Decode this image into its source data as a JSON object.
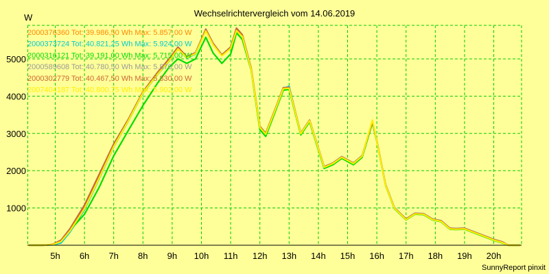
{
  "chart_data": {
    "type": "line",
    "title": "Wechselrichtervergleich vom 14.06.2019",
    "ylabel": "W",
    "xlabel": "",
    "footer": "SunnyReport pinxit",
    "xlim": [
      4.05,
      20.95
    ],
    "ylim": [
      0,
      5900
    ],
    "grid": true,
    "legend_position": "top-left",
    "yticks": [
      1000,
      2000,
      3000,
      4000,
      5000
    ],
    "xticks": [
      {
        "x": 5,
        "label": "5h"
      },
      {
        "x": 6,
        "label": "6h"
      },
      {
        "x": 7,
        "label": "7h"
      },
      {
        "x": 8,
        "label": "8h"
      },
      {
        "x": 9,
        "label": "9h"
      },
      {
        "x": 10,
        "label": "10h"
      },
      {
        "x": 11,
        "label": "11h"
      },
      {
        "x": 12,
        "label": "12h"
      },
      {
        "x": 13,
        "label": "13h"
      },
      {
        "x": 14,
        "label": "14h"
      },
      {
        "x": 15,
        "label": "15h"
      },
      {
        "x": 16,
        "label": "16h"
      },
      {
        "x": 17,
        "label": "17h"
      },
      {
        "x": 18,
        "label": "18h"
      },
      {
        "x": 19,
        "label": "19h"
      },
      {
        "x": 20,
        "label": "20h"
      }
    ],
    "series": [
      {
        "name": "2000376360 Tot: 39.986,50 Wh Max: 5.857,00 W",
        "color": "#ff8800",
        "x": [
          4.1,
          4.6,
          4.9,
          5.2,
          5.5,
          6.0,
          6.5,
          7.0,
          7.5,
          8.0,
          8.5,
          8.9,
          9.2,
          9.5,
          9.8,
          10.15,
          10.4,
          10.7,
          11.0,
          11.2,
          11.4,
          11.7,
          12.0,
          12.2,
          12.5,
          12.8,
          13.0,
          13.4,
          13.7,
          14.2,
          14.5,
          14.8,
          15.2,
          15.5,
          15.85,
          16.0,
          16.3,
          16.6,
          17.0,
          17.3,
          17.6,
          17.9,
          18.2,
          18.5,
          18.7,
          19.0,
          19.5,
          20.0,
          20.3,
          20.5,
          20.9
        ],
        "y": [
          0,
          0,
          20,
          130,
          420,
          1050,
          1880,
          2700,
          3380,
          4120,
          4620,
          4980,
          5300,
          5050,
          5150,
          5790,
          5400,
          5100,
          5300,
          5810,
          5640,
          4750,
          3180,
          3000,
          3600,
          4220,
          4230,
          3000,
          3350,
          2100,
          2200,
          2370,
          2200,
          2400,
          3320,
          2800,
          1620,
          1000,
          700,
          850,
          840,
          700,
          650,
          450,
          440,
          450,
          300,
          150,
          80,
          0,
          0
        ]
      },
      {
        "name": "2000373724 Tot: 40.821,25 Wh Max: 5.924,00 W",
        "color": "#00cccc",
        "x": [
          4.1,
          4.6,
          4.9,
          5.2,
          5.5,
          6.0,
          6.5,
          7.0,
          7.5,
          8.0,
          8.5,
          8.9,
          9.2,
          9.5,
          9.8,
          10.15,
          10.4,
          10.7,
          11.0,
          11.2,
          11.4,
          11.7,
          12.0,
          12.2,
          12.5,
          12.8,
          13.0,
          13.4,
          13.7,
          14.2,
          14.5,
          14.8,
          15.2,
          15.5,
          15.85,
          16.0,
          16.3,
          16.6,
          17.0,
          17.3,
          17.6,
          17.9,
          18.2,
          18.5,
          18.7,
          19.0,
          19.5,
          20.0,
          20.3,
          20.5,
          20.9
        ],
        "y": [
          0,
          0,
          10,
          60,
          350,
          950,
          1780,
          2640,
          3330,
          4080,
          4580,
          4940,
          5270,
          5020,
          5130,
          5770,
          5390,
          5090,
          5290,
          5780,
          5620,
          4730,
          3150,
          2970,
          3580,
          4200,
          4270,
          2980,
          3330,
          2080,
          2180,
          2350,
          2180,
          2380,
          3300,
          2790,
          1610,
          990,
          690,
          840,
          830,
          690,
          640,
          440,
          430,
          440,
          290,
          140,
          70,
          0,
          0
        ]
      },
      {
        "name": "2000316121 Tot: 39.191,00 Wh Max: 5.715,00 W",
        "color": "#00dd00",
        "x": [
          4.1,
          4.6,
          4.9,
          5.2,
          5.5,
          6.0,
          6.5,
          7.0,
          7.5,
          8.0,
          8.5,
          8.9,
          9.2,
          9.5,
          9.8,
          10.15,
          10.4,
          10.7,
          11.0,
          11.2,
          11.4,
          11.7,
          12.0,
          12.2,
          12.5,
          12.8,
          13.0,
          13.4,
          13.7,
          14.2,
          14.5,
          14.8,
          15.2,
          15.5,
          15.85,
          16.0,
          16.3,
          16.6,
          17.0,
          17.3,
          17.6,
          17.9,
          18.2,
          18.5,
          18.7,
          19.0,
          19.5,
          20.0,
          20.3,
          20.5,
          20.9
        ],
        "y": [
          0,
          0,
          20,
          110,
          400,
          830,
          1550,
          2400,
          3080,
          3750,
          4350,
          4780,
          5000,
          4880,
          5000,
          5580,
          5160,
          4880,
          5130,
          5700,
          5520,
          4700,
          3100,
          2920,
          3530,
          4160,
          4180,
          2960,
          3310,
          2060,
          2160,
          2330,
          2160,
          2360,
          3290,
          2780,
          1600,
          980,
          680,
          830,
          820,
          680,
          630,
          430,
          420,
          430,
          280,
          130,
          60,
          0,
          0
        ]
      },
      {
        "name": "2000589608 Tot: 40.780,50 Wh Max: 5.870,00 W",
        "color": "#999999",
        "x": [
          4.1,
          4.6,
          4.9,
          5.2,
          5.5,
          6.0,
          6.5,
          7.0,
          7.5,
          8.0,
          8.5,
          8.9,
          9.2,
          9.5,
          9.8,
          10.15,
          10.4,
          10.7,
          11.0,
          11.2,
          11.4,
          11.7,
          12.0,
          12.2,
          12.5,
          12.8,
          13.0,
          13.4,
          13.7,
          14.2,
          14.5,
          14.8,
          15.2,
          15.5,
          15.85,
          16.0,
          16.3,
          16.6,
          17.0,
          17.3,
          17.6,
          17.9,
          18.2,
          18.5,
          18.7,
          19.0,
          19.5,
          20.0,
          20.3,
          20.5,
          20.9
        ],
        "y": [
          0,
          0,
          20,
          140,
          440,
          1080,
          1900,
          2720,
          3380,
          4120,
          4640,
          5010,
          5320,
          5060,
          5170,
          5800,
          5420,
          5110,
          5320,
          5830,
          5650,
          4760,
          3190,
          3010,
          3610,
          4230,
          4240,
          3010,
          3360,
          2110,
          2210,
          2380,
          2210,
          2410,
          3330,
          2810,
          1630,
          1010,
          710,
          860,
          850,
          710,
          660,
          460,
          450,
          460,
          310,
          160,
          90,
          0,
          0
        ]
      },
      {
        "name": "2000302779 Tot: 40.467,50 Wh Max: 5.830,00 W",
        "color": "#cc6633",
        "x": [
          4.1,
          4.6,
          4.9,
          5.2,
          5.5,
          6.0,
          6.5,
          7.0,
          7.5,
          8.0,
          8.5,
          8.9,
          9.2,
          9.5,
          9.8,
          10.15,
          10.4,
          10.7,
          11.0,
          11.2,
          11.4,
          11.7,
          12.0,
          12.2,
          12.5,
          12.8,
          13.0,
          13.4,
          13.7,
          14.2,
          14.5,
          14.8,
          15.2,
          15.5,
          15.85,
          16.0,
          16.3,
          16.6,
          17.0,
          17.3,
          17.6,
          17.9,
          18.2,
          18.5,
          18.7,
          19.0,
          19.5,
          20.0,
          20.3,
          20.5,
          20.9
        ],
        "y": [
          0,
          0,
          20,
          135,
          430,
          1070,
          1890,
          2710,
          3370,
          4110,
          4630,
          5000,
          5310,
          5050,
          5160,
          5790,
          5410,
          5100,
          5310,
          5820,
          5640,
          4750,
          3180,
          3000,
          3600,
          4220,
          4230,
          3000,
          3350,
          2100,
          2200,
          2370,
          2200,
          2400,
          3320,
          2800,
          1620,
          1000,
          700,
          850,
          840,
          700,
          650,
          450,
          440,
          450,
          300,
          150,
          80,
          0,
          0
        ]
      },
      {
        "name": "2007404187 Tot: 40.800,75 Wh Max: 5.902,00 W",
        "color": "#ffee00",
        "x": [
          4.1,
          4.6,
          4.9,
          5.2,
          5.5,
          6.0,
          6.5,
          7.0,
          7.5,
          8.0,
          8.5,
          8.9,
          9.2,
          9.5,
          9.8,
          10.15,
          10.4,
          10.7,
          11.0,
          11.2,
          11.4,
          11.7,
          12.0,
          12.2,
          12.5,
          12.8,
          13.0,
          13.4,
          13.7,
          14.2,
          14.5,
          14.8,
          15.2,
          15.5,
          15.85,
          16.0,
          16.3,
          16.6,
          17.0,
          17.3,
          17.6,
          17.9,
          18.2,
          18.5,
          18.7,
          19.0,
          19.5,
          20.0,
          20.3,
          20.5,
          20.9
        ],
        "y": [
          0,
          0,
          15,
          100,
          380,
          980,
          1800,
          2650,
          3340,
          4090,
          4590,
          4950,
          5270,
          5030,
          5140,
          5750,
          5380,
          5080,
          5280,
          5760,
          5600,
          4720,
          3160,
          2980,
          3580,
          4200,
          4210,
          2990,
          3340,
          2090,
          2190,
          2360,
          2190,
          2390,
          3360,
          2790,
          1610,
          990,
          690,
          840,
          830,
          690,
          640,
          440,
          430,
          440,
          290,
          140,
          70,
          0,
          0
        ]
      }
    ]
  }
}
